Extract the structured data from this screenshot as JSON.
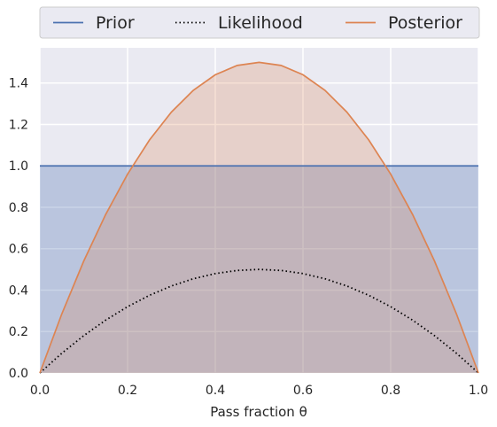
{
  "chart_data": {
    "type": "line",
    "xlabel": "Pass fraction θ",
    "xlim": [
      0,
      1
    ],
    "ylim": [
      0,
      1.57
    ],
    "x_ticks": [
      "0.0",
      "0.2",
      "0.4",
      "0.6",
      "0.8",
      "1.0"
    ],
    "y_ticks": [
      "0.0",
      "0.2",
      "0.4",
      "0.6",
      "0.8",
      "1.0",
      "1.2",
      "1.4"
    ],
    "grid": true,
    "legend_placement": "top",
    "series": [
      {
        "name": "Prior",
        "style": "solid",
        "filled": true,
        "color": "#4c72b0",
        "x": [
          0,
          0.1,
          0.2,
          0.3,
          0.4,
          0.5,
          0.6,
          0.7,
          0.8,
          0.9,
          1.0
        ],
        "y": [
          1.0,
          1.0,
          1.0,
          1.0,
          1.0,
          1.0,
          1.0,
          1.0,
          1.0,
          1.0,
          1.0
        ]
      },
      {
        "name": "Likelihood",
        "style": "dotted",
        "filled": false,
        "color": "#000000",
        "x": [
          0,
          0.05,
          0.1,
          0.15,
          0.2,
          0.25,
          0.3,
          0.35,
          0.4,
          0.45,
          0.5,
          0.55,
          0.6,
          0.65,
          0.7,
          0.75,
          0.8,
          0.85,
          0.9,
          0.95,
          1.0
        ],
        "y": [
          0,
          0.095,
          0.18,
          0.255,
          0.32,
          0.375,
          0.42,
          0.455,
          0.48,
          0.495,
          0.5,
          0.495,
          0.48,
          0.455,
          0.42,
          0.375,
          0.32,
          0.255,
          0.18,
          0.095,
          0
        ]
      },
      {
        "name": "Posterior",
        "style": "solid",
        "filled": true,
        "color": "#dd8452",
        "x": [
          0,
          0.05,
          0.1,
          0.15,
          0.2,
          0.25,
          0.3,
          0.35,
          0.4,
          0.45,
          0.5,
          0.55,
          0.6,
          0.65,
          0.7,
          0.75,
          0.8,
          0.85,
          0.9,
          0.95,
          1.0
        ],
        "y": [
          0,
          0.285,
          0.54,
          0.765,
          0.96,
          1.125,
          1.26,
          1.365,
          1.44,
          1.485,
          1.5,
          1.485,
          1.44,
          1.365,
          1.26,
          1.125,
          0.96,
          0.765,
          0.54,
          0.285,
          0
        ]
      }
    ]
  }
}
